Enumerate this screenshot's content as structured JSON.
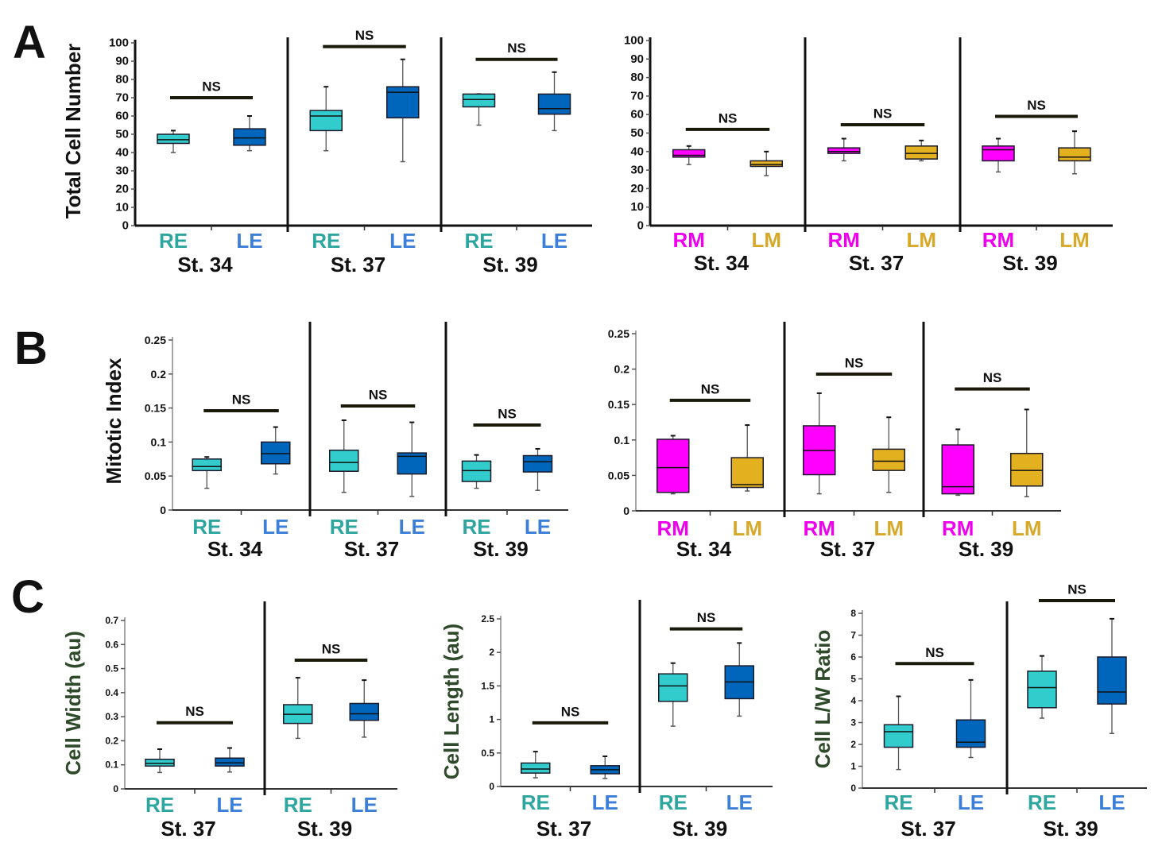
{
  "panels": [
    {
      "letter": "A"
    },
    {
      "letter": "B"
    },
    {
      "letter": "C"
    }
  ],
  "colors": {
    "RE_box": "#33CCCC",
    "RE_label": "#2EA6A0",
    "LE_box": "#0066BB",
    "LE_label": "#3C7FD8",
    "RM_box": "#FF00FF",
    "RM_label": "#EE00EE",
    "LM_box": "#E3B020",
    "LM_label": "#D8A828",
    "axis": "#222222",
    "ylabel_C": "#2E4A2A"
  },
  "chart_data": [
    {
      "type": "box",
      "panel": "A",
      "ylabel": "Total Cell Number",
      "ylim": [
        0,
        100
      ],
      "y_ticks": [
        "0",
        "10",
        "20",
        "30",
        "40",
        "50",
        "60",
        "70",
        "80",
        "90",
        "100"
      ],
      "groups": [
        {
          "stage": "St. 34",
          "annotation": "NS",
          "boxes": [
            {
              "label": "RE",
              "min": 40,
              "q1": 45,
              "median": 47,
              "q3": 50,
              "max": 52
            },
            {
              "label": "LE",
              "min": 41,
              "q1": 44,
              "median": 48,
              "q3": 53,
              "max": 60
            }
          ]
        },
        {
          "stage": "St. 37",
          "annotation": "NS",
          "boxes": [
            {
              "label": "RE",
              "min": 41,
              "q1": 52,
              "median": 60,
              "q3": 63,
              "max": 76
            },
            {
              "label": "LE",
              "min": 35,
              "q1": 59,
              "median": 73,
              "q3": 76,
              "max": 91
            }
          ]
        },
        {
          "stage": "St. 39",
          "annotation": "NS",
          "boxes": [
            {
              "label": "RE",
              "min": 55,
              "q1": 65,
              "median": 69,
              "q3": 72,
              "max": 72
            },
            {
              "label": "LE",
              "min": 52,
              "q1": 61,
              "median": 64,
              "q3": 72,
              "max": 84
            }
          ]
        }
      ]
    },
    {
      "type": "box",
      "panel": "A",
      "ylabel": "",
      "ylim": [
        0,
        100
      ],
      "y_ticks": [
        "0",
        "10",
        "20",
        "30",
        "40",
        "50",
        "60",
        "70",
        "80",
        "90",
        "100"
      ],
      "groups": [
        {
          "stage": "St. 34",
          "annotation": "NS",
          "boxes": [
            {
              "label": "RM",
              "min": 33,
              "q1": 37,
              "median": 38,
              "q3": 41,
              "max": 43
            },
            {
              "label": "LM",
              "min": 27,
              "q1": 32,
              "median": 33,
              "q3": 35,
              "max": 40
            }
          ]
        },
        {
          "stage": "St. 37",
          "annotation": "NS",
          "boxes": [
            {
              "label": "RM",
              "min": 35,
              "q1": 39,
              "median": 40,
              "q3": 42,
              "max": 47
            },
            {
              "label": "LM",
              "min": 35,
              "q1": 36,
              "median": 39,
              "q3": 43,
              "max": 46
            }
          ]
        },
        {
          "stage": "St. 39",
          "annotation": "NS",
          "boxes": [
            {
              "label": "RM",
              "min": 29,
              "q1": 35,
              "median": 41,
              "q3": 43,
              "max": 47
            },
            {
              "label": "LM",
              "min": 28,
              "q1": 35,
              "median": 37,
              "q3": 42,
              "max": 51
            }
          ]
        }
      ]
    },
    {
      "type": "box",
      "panel": "B",
      "ylabel": "Mitotic Index",
      "ylim": [
        0,
        0.25
      ],
      "y_ticks": [
        "0",
        "0.05",
        "0.1",
        "0.15",
        "0.2",
        "0.25"
      ],
      "groups": [
        {
          "stage": "St. 34",
          "annotation": "NS",
          "boxes": [
            {
              "label": "RE",
              "min": 0.032,
              "q1": 0.058,
              "median": 0.064,
              "q3": 0.075,
              "max": 0.078
            },
            {
              "label": "LE",
              "min": 0.053,
              "q1": 0.068,
              "median": 0.083,
              "q3": 0.1,
              "max": 0.122
            }
          ]
        },
        {
          "stage": "St. 37",
          "annotation": "NS",
          "boxes": [
            {
              "label": "RE",
              "min": 0.026,
              "q1": 0.057,
              "median": 0.07,
              "q3": 0.088,
              "max": 0.132
            },
            {
              "label": "LE",
              "min": 0.02,
              "q1": 0.053,
              "median": 0.079,
              "q3": 0.084,
              "max": 0.129
            }
          ]
        },
        {
          "stage": "St. 39",
          "annotation": "NS",
          "boxes": [
            {
              "label": "RE",
              "min": 0.032,
              "q1": 0.042,
              "median": 0.058,
              "q3": 0.072,
              "max": 0.081
            },
            {
              "label": "LE",
              "min": 0.029,
              "q1": 0.056,
              "median": 0.071,
              "q3": 0.08,
              "max": 0.09
            }
          ]
        }
      ]
    },
    {
      "type": "box",
      "panel": "B",
      "ylabel": "",
      "ylim": [
        0,
        0.25
      ],
      "y_ticks": [
        "0",
        "0.05",
        "0.1",
        "0.15",
        "0.2",
        "0.25"
      ],
      "groups": [
        {
          "stage": "St. 34",
          "annotation": "NS",
          "boxes": [
            {
              "label": "RM",
              "min": 0.024,
              "q1": 0.026,
              "median": 0.061,
              "q3": 0.101,
              "max": 0.106
            },
            {
              "label": "LM",
              "min": 0.028,
              "q1": 0.033,
              "median": 0.037,
              "q3": 0.075,
              "max": 0.121
            }
          ]
        },
        {
          "stage": "St. 37",
          "annotation": "NS",
          "boxes": [
            {
              "label": "RM",
              "min": 0.024,
              "q1": 0.051,
              "median": 0.085,
              "q3": 0.12,
              "max": 0.166
            },
            {
              "label": "LM",
              "min": 0.026,
              "q1": 0.057,
              "median": 0.07,
              "q3": 0.087,
              "max": 0.132
            }
          ]
        },
        {
          "stage": "St. 39",
          "annotation": "NS",
          "boxes": [
            {
              "label": "RM",
              "min": 0.022,
              "q1": 0.024,
              "median": 0.034,
              "q3": 0.093,
              "max": 0.115
            },
            {
              "label": "LM",
              "min": 0.02,
              "q1": 0.035,
              "median": 0.057,
              "q3": 0.081,
              "max": 0.143
            }
          ]
        }
      ]
    },
    {
      "type": "box",
      "panel": "C",
      "ylabel": "Cell Width (au)",
      "ylim": [
        0,
        0.7
      ],
      "y_ticks": [
        "0",
        "0.1",
        "0.2",
        "0.3",
        "0.4",
        "0.5",
        "0.6",
        "0.7"
      ],
      "groups": [
        {
          "stage": "St. 37",
          "annotation": "NS",
          "boxes": [
            {
              "label": "RE",
              "min": 0.068,
              "q1": 0.095,
              "median": 0.106,
              "q3": 0.123,
              "max": 0.165
            },
            {
              "label": "LE",
              "min": 0.07,
              "q1": 0.095,
              "median": 0.108,
              "q3": 0.128,
              "max": 0.17
            }
          ]
        },
        {
          "stage": "St. 39",
          "annotation": "NS",
          "boxes": [
            {
              "label": "RE",
              "min": 0.21,
              "q1": 0.272,
              "median": 0.31,
              "q3": 0.35,
              "max": 0.462
            },
            {
              "label": "LE",
              "min": 0.215,
              "q1": 0.285,
              "median": 0.312,
              "q3": 0.355,
              "max": 0.452
            }
          ]
        }
      ]
    },
    {
      "type": "box",
      "panel": "C",
      "ylabel": "Cell Length (au)",
      "ylim": [
        0,
        2.5
      ],
      "y_ticks": [
        "0",
        "0.5",
        "1",
        "1.5",
        "2",
        "2.5"
      ],
      "groups": [
        {
          "stage": "St. 37",
          "annotation": "NS",
          "boxes": [
            {
              "label": "RE",
              "min": 0.13,
              "q1": 0.2,
              "median": 0.26,
              "q3": 0.35,
              "max": 0.52
            },
            {
              "label": "LE",
              "min": 0.12,
              "q1": 0.19,
              "median": 0.25,
              "q3": 0.31,
              "max": 0.45
            }
          ]
        },
        {
          "stage": "St. 39",
          "annotation": "NS",
          "boxes": [
            {
              "label": "RE",
              "min": 0.9,
              "q1": 1.27,
              "median": 1.5,
              "q3": 1.68,
              "max": 1.84
            },
            {
              "label": "LE",
              "min": 1.05,
              "q1": 1.31,
              "median": 1.56,
              "q3": 1.8,
              "max": 2.14
            }
          ]
        }
      ]
    },
    {
      "type": "box",
      "panel": "C",
      "ylabel": "Cell L/W Ratio",
      "ylim": [
        0,
        8
      ],
      "y_ticks": [
        "0",
        "1",
        "2",
        "3",
        "4",
        "5",
        "6",
        "7",
        "8"
      ],
      "groups": [
        {
          "stage": "St. 37",
          "annotation": "NS",
          "boxes": [
            {
              "label": "RE",
              "min": 0.85,
              "q1": 1.87,
              "median": 2.58,
              "q3": 2.9,
              "max": 4.2
            },
            {
              "label": "LE",
              "min": 1.4,
              "q1": 1.87,
              "median": 2.1,
              "q3": 3.12,
              "max": 4.95
            }
          ]
        },
        {
          "stage": "St. 39",
          "annotation": "NS",
          "boxes": [
            {
              "label": "RE",
              "min": 3.2,
              "q1": 3.68,
              "median": 4.6,
              "q3": 5.35,
              "max": 6.05
            },
            {
              "label": "LE",
              "min": 2.5,
              "q1": 3.85,
              "median": 4.4,
              "q3": 6.0,
              "max": 7.75
            }
          ]
        }
      ]
    }
  ]
}
